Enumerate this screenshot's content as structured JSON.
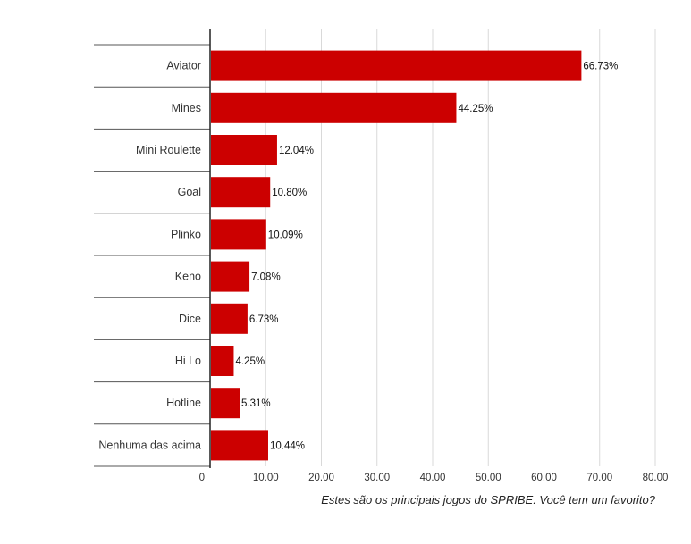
{
  "chart_data": {
    "type": "bar",
    "orientation": "horizontal",
    "categories": [
      "Aviator",
      "Mines",
      "Mini Roulette",
      "Goal",
      "Plinko",
      "Keno",
      "Dice",
      "Hi Lo",
      "Hotline",
      "Nenhuma das acima"
    ],
    "values": [
      66.73,
      44.25,
      12.04,
      10.8,
      10.09,
      7.08,
      6.73,
      4.25,
      5.31,
      10.44
    ],
    "value_labels": [
      "66.73%",
      "44.25%",
      "12.04%",
      "10.80%",
      "10.09%",
      "7.08%",
      "6.73%",
      "4.25%",
      "5.31%",
      "10.44%"
    ],
    "xlim": [
      0,
      80
    ],
    "x_ticks": [
      0,
      10,
      20,
      30,
      40,
      50,
      60,
      70,
      80
    ],
    "x_tick_labels": [
      "0",
      "10.00",
      "20.00",
      "30.00",
      "40.00",
      "50.00",
      "60.00",
      "70.00",
      "80.00"
    ],
    "grid": true,
    "bar_color": "#cc0000",
    "caption": "Estes são os principais jogos do SPRIBE. Você tem um favorito?"
  }
}
